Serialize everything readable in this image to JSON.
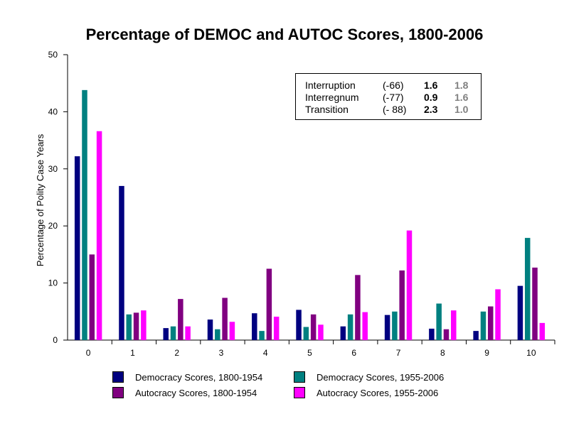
{
  "chart_data": {
    "type": "bar",
    "title": "Percentage of DEMOC and AUTOC Scores, 1800-2006",
    "xlabel": "",
    "ylabel": "Percentage of Polity Case Years",
    "ylim": [
      0,
      50
    ],
    "yticks": [
      0,
      10,
      20,
      30,
      40,
      50
    ],
    "categories": [
      "0",
      "1",
      "2",
      "3",
      "4",
      "5",
      "6",
      "7",
      "8",
      "9",
      "10"
    ],
    "legend_position": "bottom",
    "grid": false,
    "series": [
      {
        "name": "Democracy Scores, 1800-1954",
        "color": "#000080",
        "values": [
          32.2,
          27.0,
          2.1,
          3.6,
          4.7,
          5.3,
          2.4,
          4.4,
          2.0,
          1.6,
          9.5
        ]
      },
      {
        "name": "Democracy Scores, 1955-2006",
        "color": "#008080",
        "values": [
          43.8,
          4.5,
          2.4,
          1.9,
          1.6,
          2.3,
          4.5,
          5.0,
          6.4,
          5.0,
          17.9
        ]
      },
      {
        "name": "Autocracy Scores, 1800-1954",
        "color": "#800080",
        "values": [
          15.0,
          4.8,
          7.2,
          7.4,
          12.5,
          4.5,
          11.4,
          12.2,
          1.9,
          5.9,
          12.7
        ]
      },
      {
        "name": "Autocracy Scores, 1955-2006",
        "color": "#ff00ff",
        "values": [
          36.6,
          5.2,
          2.4,
          3.2,
          4.1,
          2.7,
          4.9,
          19.2,
          5.2,
          8.9,
          3.0
        ]
      }
    ],
    "annotation_box": {
      "rows": [
        {
          "label": "Interruption",
          "code": "(-66)",
          "value_1": "1.6",
          "value_2": "1.8"
        },
        {
          "label": "Interregnum",
          "code": "(-77)",
          "value_1": "0.9",
          "value_2": "1.6"
        },
        {
          "label": "Transition",
          "code": "(- 88)",
          "value_1": "2.3",
          "value_2": "1.0"
        }
      ]
    }
  }
}
